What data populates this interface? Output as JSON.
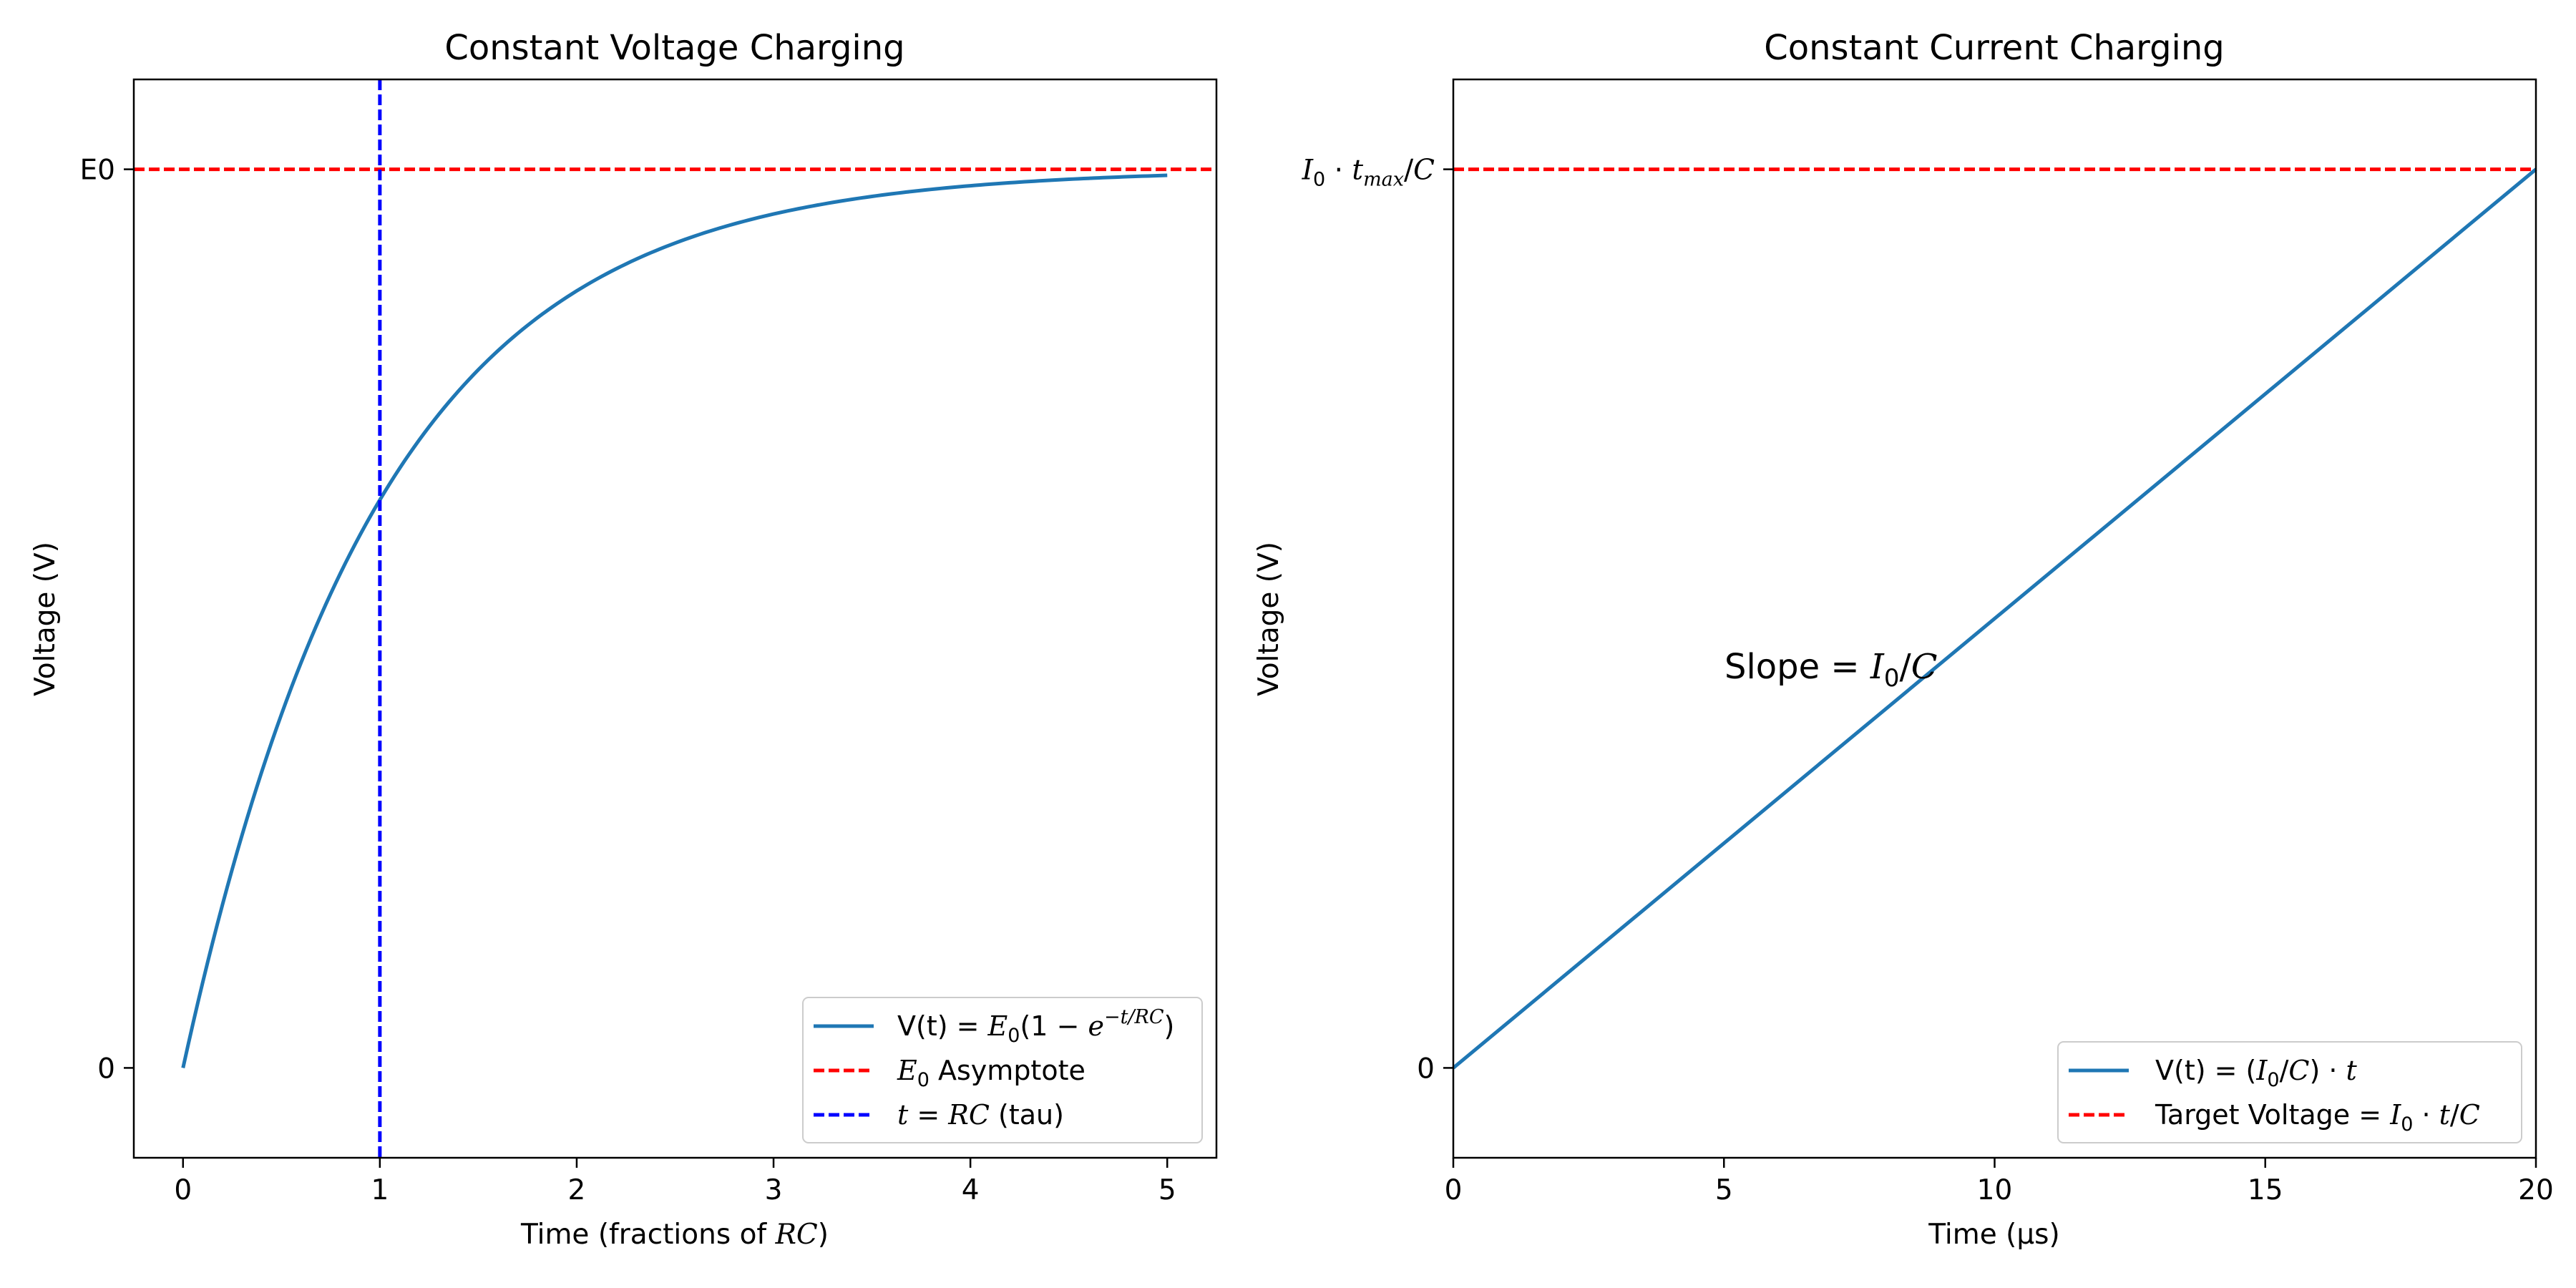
{
  "chart_data": [
    {
      "type": "line",
      "title": "Constant Voltage Charging",
      "xlabel": "Time (fractions of RC)",
      "ylabel": "Voltage (V)",
      "xlim": [
        -0.25,
        5.25
      ],
      "ylim": [
        -0.1,
        1.1
      ],
      "x_ticks": [
        0,
        1,
        2,
        3,
        4,
        5
      ],
      "y_ticks": [
        {
          "value": 0,
          "label": "0"
        },
        {
          "value": 1,
          "label": "E0"
        }
      ],
      "grid": false,
      "legend_position": "lower-right",
      "series": [
        {
          "name": "V(t) = E0(1 − e^(−t/RC))",
          "kind": "line",
          "color": "#1f77b4",
          "function": "1-exp(-x)",
          "x_range": [
            0,
            5
          ]
        },
        {
          "name": "E0 Asymptote",
          "kind": "hline",
          "color": "#ff0000",
          "dash": true,
          "value": 1
        },
        {
          "name": "t = RC (tau)",
          "kind": "vline",
          "color": "#0000ff",
          "dash": true,
          "value": 1
        }
      ],
      "legend_text": [
        {
          "prefix": "V(t) = ",
          "math": "E₀(1 − e",
          "sup": "−t/RC",
          "suffix": ")"
        },
        {
          "prefix": "",
          "math": "E₀",
          "sup": "",
          "suffix": " Asymptote"
        },
        {
          "prefix": "",
          "math": "t = RC",
          "sup": "",
          "suffix": " (tau)"
        }
      ]
    },
    {
      "type": "line",
      "title": "Constant Current Charging",
      "xlabel": "Time (µs)",
      "ylabel": "Voltage (V)",
      "xlim": [
        0,
        20
      ],
      "ylim": [
        -0.1,
        1.1
      ],
      "x_ticks": [
        0,
        5,
        10,
        15,
        20
      ],
      "y_ticks": [
        {
          "value": 0,
          "label": "0"
        },
        {
          "value": 1,
          "label": "I₀·tmax/C"
        }
      ],
      "grid": false,
      "legend_position": "lower-right",
      "annotation": {
        "text": "Slope = I₀/C",
        "x": 5,
        "y": 0.5
      },
      "series": [
        {
          "name": "V(t) = (I0/C)·t",
          "kind": "line",
          "color": "#1f77b4",
          "points": [
            [
              0,
              0
            ],
            [
              20,
              1
            ]
          ]
        },
        {
          "name": "Target Voltage = I0·t/C",
          "kind": "hline",
          "color": "#ff0000",
          "dash": true,
          "value": 1
        }
      ],
      "legend_text": [
        {
          "prefix": "V(t) = ",
          "math": "(I₀/C) · t",
          "sup": "",
          "suffix": ""
        },
        {
          "prefix": "Target Voltage = ",
          "math": "I₀ · t/C",
          "sup": "",
          "suffix": ""
        }
      ]
    }
  ]
}
